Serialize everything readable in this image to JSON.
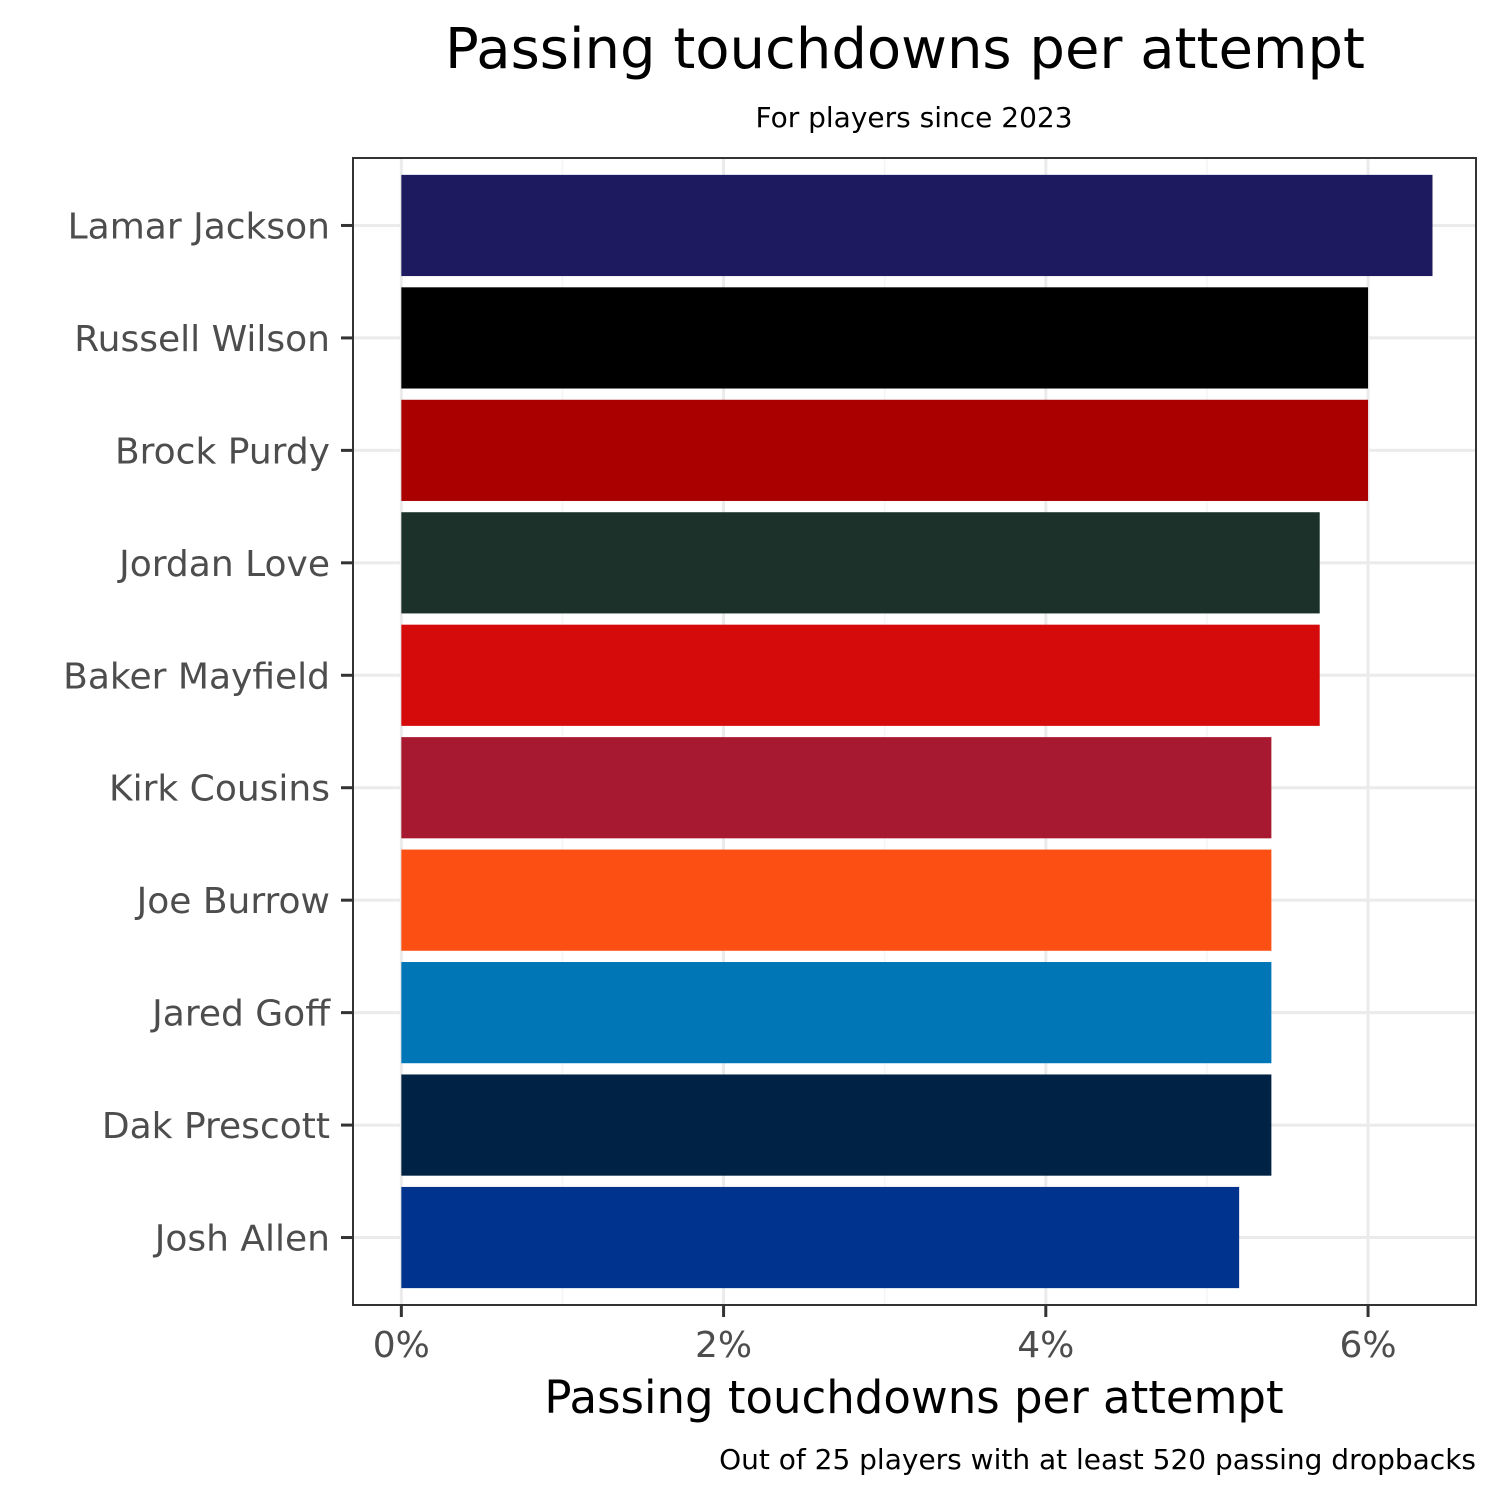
{
  "chart_data": {
    "type": "bar",
    "orientation": "horizontal",
    "title": "Passing touchdowns per attempt",
    "subtitle": "For players since 2023",
    "xlabel": "Passing touchdowns per attempt",
    "ylabel": "",
    "caption": "Out of 25 players with at least 520 passing dropbacks",
    "xlim": [
      -0.003,
      0.0667
    ],
    "x_ticks": [
      0,
      0.02,
      0.04,
      0.06
    ],
    "x_tick_labels": [
      "0%",
      "2%",
      "4%",
      "6%"
    ],
    "grid": true,
    "legend": "none",
    "categories": [
      "Lamar Jackson",
      "Russell Wilson",
      "Brock Purdy",
      "Jordan Love",
      "Baker Mayfield",
      "Kirk Cousins",
      "Joe Burrow",
      "Jared Goff",
      "Dak Prescott",
      "Josh Allen"
    ],
    "values": [
      0.064,
      0.06,
      0.06,
      0.057,
      0.057,
      0.054,
      0.054,
      0.054,
      0.054,
      0.052
    ],
    "colors": [
      "#1d1a5f",
      "#000000",
      "#aa0000",
      "#1c3129",
      "#d50a0a",
      "#a71930",
      "#fb4f14",
      "#0076b6",
      "#002244",
      "#00338d"
    ]
  }
}
